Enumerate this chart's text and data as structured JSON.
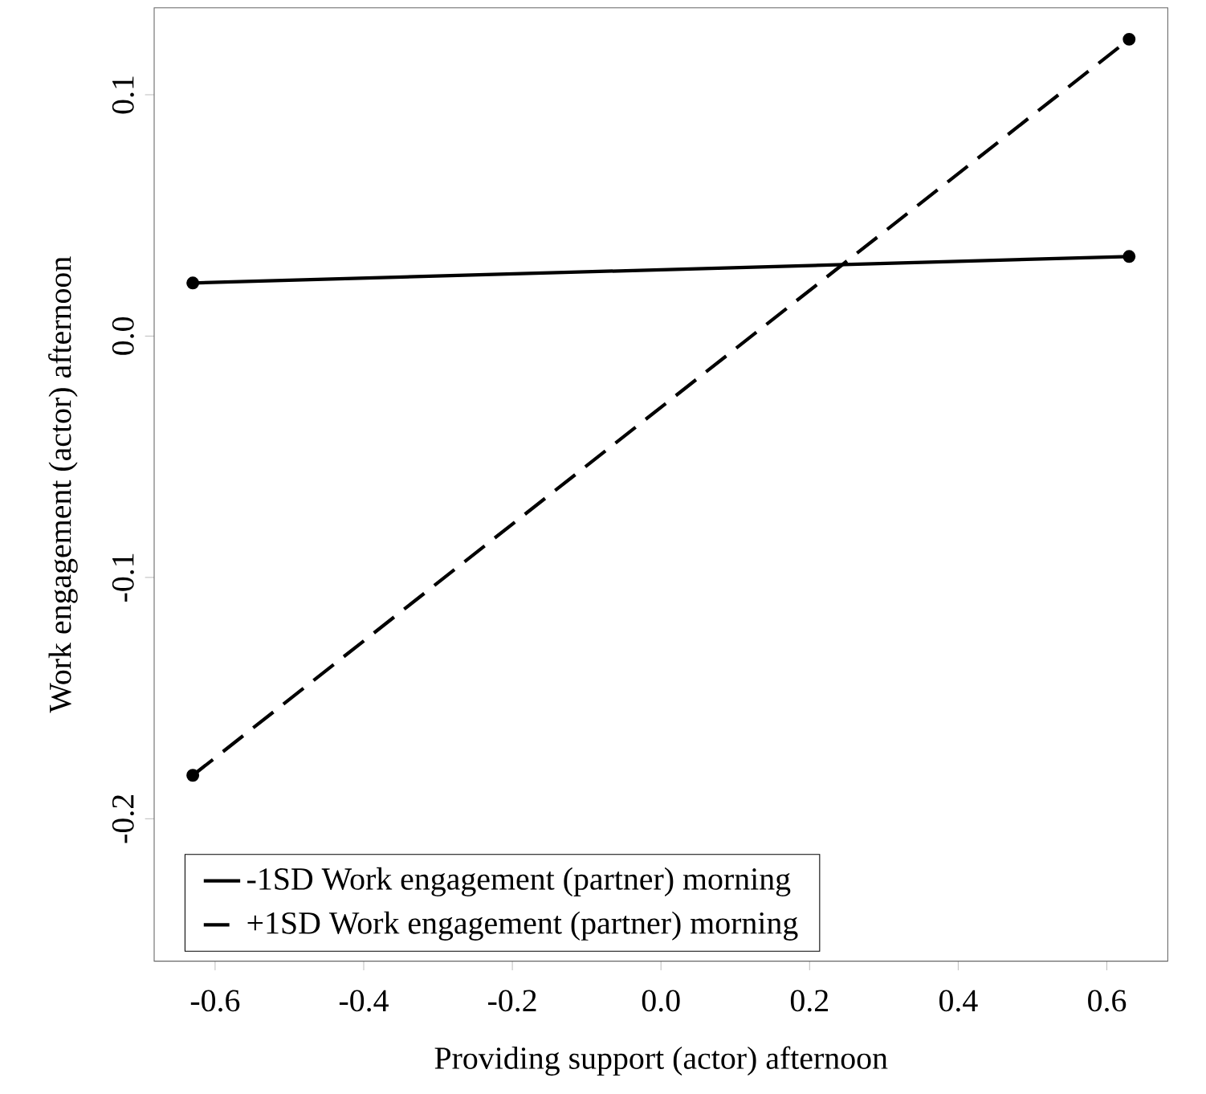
{
  "chart_data": {
    "type": "line",
    "xlabel": "Providing support (actor) afternoon",
    "ylabel": "Work engagement (actor) afternoon",
    "x": [
      -0.63,
      0.63
    ],
    "series": [
      {
        "name": "-1SD Work engagement (partner) morning",
        "color": "#000000",
        "values": [
          0.022,
          0.033
        ],
        "line_style": "solid"
      },
      {
        "name": "+1SD Work engagement (partner) morning",
        "color": "#000000",
        "values": [
          -0.182,
          0.123
        ],
        "line_style": "dashed"
      }
    ],
    "xlim": [
      -0.682,
      0.682
    ],
    "ylim": [
      -0.259,
      0.136
    ],
    "xticks": [
      -0.6,
      -0.4,
      -0.2,
      {
        "value": 0,
        "label": "0.0"
      },
      0.2,
      0.4,
      0.6
    ],
    "yticks": [
      -0.2,
      -0.1,
      {
        "value": 0,
        "label": "0.0"
      },
      0.1
    ],
    "marker": "circle",
    "legend": "bottom left",
    "grid": false
  }
}
